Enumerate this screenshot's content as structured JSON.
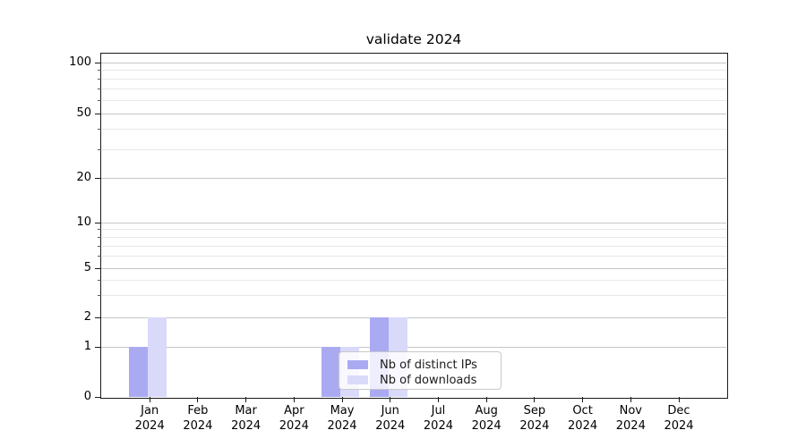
{
  "chart_data": {
    "type": "bar",
    "title": "validate 2024",
    "categories": [
      "Jan",
      "Feb",
      "Mar",
      "Apr",
      "May",
      "Jun",
      "Jul",
      "Aug",
      "Sep",
      "Oct",
      "Nov",
      "Dec"
    ],
    "category_year": "2024",
    "series": [
      {
        "name": "Nb of distinct IPs",
        "color": "#aaaaf2",
        "values": [
          1,
          0,
          0,
          0,
          1,
          2,
          0,
          0,
          0,
          0,
          0,
          0
        ]
      },
      {
        "name": "Nb of downloads",
        "color": "#d9d9fa",
        "values": [
          2,
          0,
          0,
          0,
          1,
          2,
          0,
          0,
          0,
          0,
          0,
          0
        ]
      }
    ],
    "ylabel": "",
    "xlabel": "",
    "yticks": [
      0,
      1,
      2,
      5,
      10,
      20,
      50,
      100
    ],
    "yticks_minor": [
      3,
      4,
      6,
      7,
      8,
      9,
      30,
      40,
      60,
      70,
      80,
      90
    ],
    "ylim": [
      0,
      120
    ],
    "scale": "symlog",
    "grid": "both",
    "legend_position": "lower-center",
    "colors": {
      "grid_major": "#c6c6c6",
      "grid_minor": "#e8e8e8",
      "spine": "#1a1a1a",
      "text": "#000000"
    }
  }
}
